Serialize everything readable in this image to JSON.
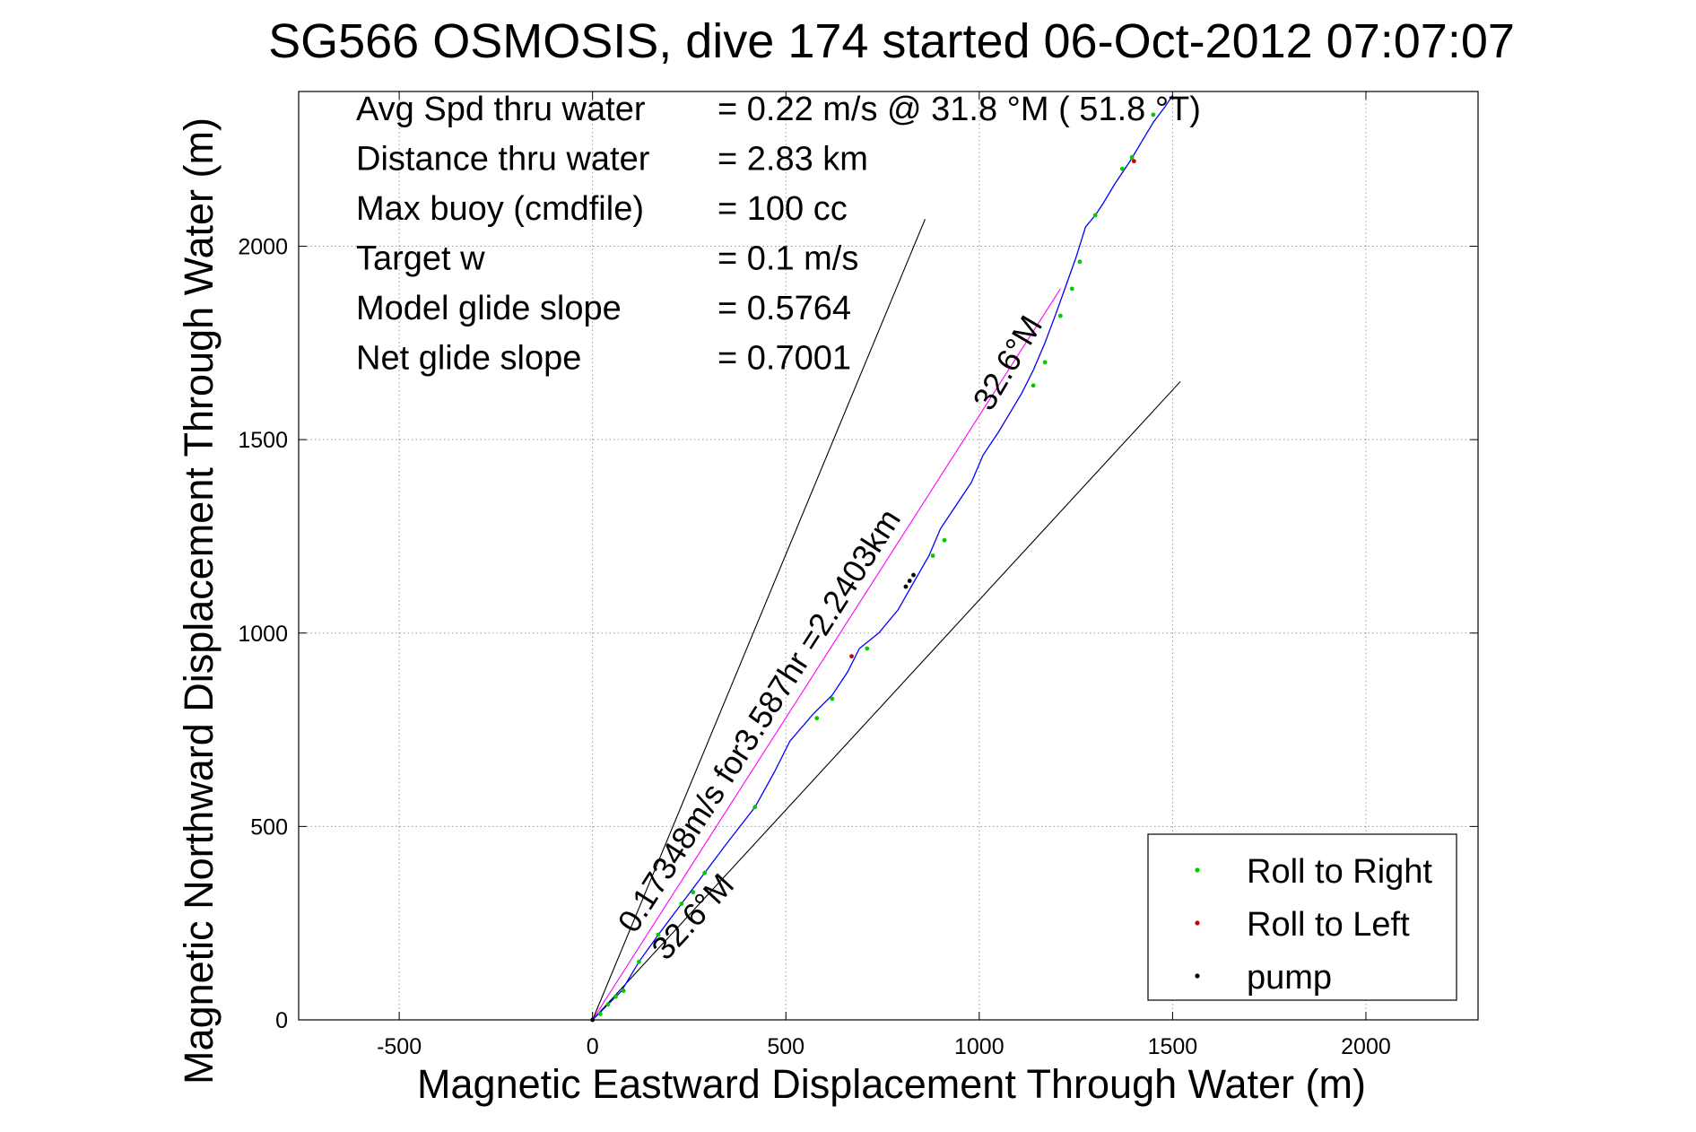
{
  "chart_data": {
    "type": "line",
    "title": "SG566 OSMOSIS, dive 174 started 06-Oct-2012 07:07:07",
    "xlabel": "Magnetic Eastward Displacement Through Water (m)",
    "ylabel": "Magnetic Northward Displacement Through Water (m)",
    "xlim": [
      -760,
      2290
    ],
    "ylim": [
      0,
      2400
    ],
    "xticks": [
      -500,
      0,
      500,
      1000,
      1500,
      2000
    ],
    "yticks": [
      0,
      500,
      1000,
      1500,
      2000
    ],
    "xtick_labels": [
      "-500",
      "0",
      "500",
      "1000",
      "1500",
      "2000"
    ],
    "ytick_labels": [
      "0",
      "500",
      "1000",
      "1500",
      "2000"
    ],
    "grid": true,
    "info_rows": [
      {
        "label": "Avg Spd thru water",
        "value": "=  0.22 m/s @  31.8 °M ( 51.8 °T)"
      },
      {
        "label": "Distance thru water",
        "value": "=  2.83 km"
      },
      {
        "label": "Max buoy (cmdfile)",
        "value": "= 100 cc"
      },
      {
        "label": "Target w",
        "value": "= 0.1 m/s"
      },
      {
        "label": "Model glide slope",
        "value": "= 0.5764"
      },
      {
        "label": "Net glide slope",
        "value": "= 0.7001"
      }
    ],
    "annotations": [
      {
        "text": "0.17348m/s for3.587hr =2.2403km",
        "x": 110,
        "y": 220
      },
      {
        "text": "32.6°M",
        "x": 1030,
        "y": 1570
      },
      {
        "text": "32.6°M",
        "x": 190,
        "y": 150
      }
    ],
    "reference_lines": [
      {
        "name": "bound-left",
        "x": [
          0,
          860
        ],
        "y": [
          0,
          2070
        ],
        "color": "#000000"
      },
      {
        "name": "bound-right",
        "x": [
          0,
          1520
        ],
        "y": [
          0,
          1650
        ],
        "color": "#000000"
      },
      {
        "name": "target-course",
        "x": [
          0,
          1210
        ],
        "y": [
          0,
          1890
        ],
        "color": "#ff00ff"
      }
    ],
    "track": {
      "color": "#0000ff",
      "x": [
        0,
        40,
        75,
        120,
        170,
        230,
        290,
        350,
        420,
        470,
        510,
        570,
        620,
        660,
        690,
        740,
        790,
        830,
        870,
        900,
        940,
        980,
        1010,
        1050,
        1080,
        1110,
        1140,
        1170,
        1200,
        1225,
        1250,
        1275,
        1300,
        1320,
        1350,
        1390,
        1420,
        1450,
        1480,
        1500
      ],
      "y": [
        0,
        40,
        75,
        150,
        220,
        300,
        380,
        460,
        550,
        640,
        720,
        790,
        840,
        900,
        960,
        1000,
        1060,
        1130,
        1200,
        1270,
        1330,
        1390,
        1460,
        1520,
        1570,
        1620,
        1680,
        1750,
        1830,
        1900,
        1970,
        2050,
        2080,
        2110,
        2160,
        2220,
        2270,
        2320,
        2360,
        2390
      ]
    },
    "series": [
      {
        "name": "Roll to Right",
        "color": "#00cc00",
        "x": [
          20,
          40,
          60,
          80,
          120,
          170,
          230,
          260,
          290,
          420,
          580,
          620,
          710,
          910,
          880,
          1140,
          1170,
          1210,
          1240,
          1260,
          1300,
          1370,
          1395,
          1450
        ],
        "y": [
          15,
          40,
          60,
          75,
          150,
          220,
          300,
          330,
          380,
          550,
          780,
          830,
          960,
          1240,
          1200,
          1640,
          1700,
          1820,
          1890,
          1960,
          2080,
          2200,
          2230,
          2340
        ]
      },
      {
        "name": "Roll to Left",
        "color": "#cc0000",
        "x": [
          670,
          1400
        ],
        "y": [
          940,
          2220
        ]
      },
      {
        "name": "pump",
        "color": "#000000",
        "x": [
          0,
          810,
          820,
          830
        ],
        "y": [
          0,
          1120,
          1135,
          1150
        ]
      }
    ],
    "legend": {
      "placement": "bottom-right",
      "entries": [
        {
          "label": "Roll to Right",
          "color": "#00cc00"
        },
        {
          "label": "Roll to Left",
          "color": "#cc0000"
        },
        {
          "label": "pump",
          "color": "#000000"
        }
      ]
    }
  }
}
